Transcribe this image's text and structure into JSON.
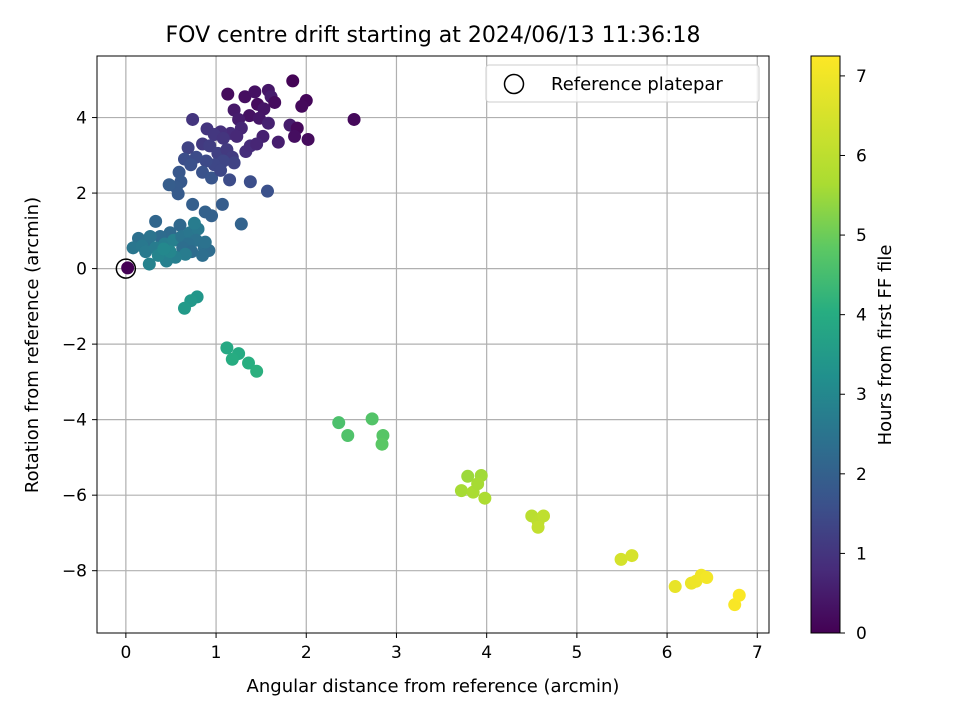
{
  "chart_data": {
    "type": "scatter",
    "title": "FOV centre drift starting at 2024/06/13 11:36:18",
    "xlabel": "Angular distance from reference (arcmin)",
    "ylabel": "Rotation from reference (arcmin)",
    "xlim": [
      -0.32,
      7.13
    ],
    "ylim": [
      -9.65,
      5.63
    ],
    "xticks": [
      0,
      1,
      2,
      3,
      4,
      5,
      6,
      7
    ],
    "yticks": [
      -8,
      -6,
      -4,
      -2,
      0,
      2,
      4
    ],
    "grid": true,
    "legend": {
      "placement": "top-right",
      "entries": [
        "Reference platepar"
      ]
    },
    "colorbar": {
      "label": "Hours from first FF file",
      "range": [
        0,
        7.25
      ],
      "ticks": [
        0,
        1,
        2,
        3,
        4,
        5,
        6,
        7
      ],
      "colormap": "viridis"
    },
    "reference": {
      "x": 0,
      "y": 0,
      "name": "Reference platepar"
    },
    "points": [
      [
        1.85,
        4.97,
        0.05
      ],
      [
        1.13,
        4.62,
        0.2
      ],
      [
        1.32,
        4.55,
        0.25
      ],
      [
        1.43,
        4.68,
        0.3
      ],
      [
        1.58,
        4.72,
        0.4
      ],
      [
        1.61,
        4.55,
        0.5
      ],
      [
        2.0,
        4.45,
        0.1
      ],
      [
        1.95,
        4.3,
        0.15
      ],
      [
        1.46,
        4.35,
        0.2
      ],
      [
        1.65,
        4.4,
        0.2
      ],
      [
        1.53,
        4.23,
        0.35
      ],
      [
        1.37,
        4.05,
        0.3
      ],
      [
        1.2,
        4.2,
        0.45
      ],
      [
        1.25,
        3.95,
        0.5
      ],
      [
        1.48,
        3.98,
        0.4
      ],
      [
        1.58,
        3.85,
        0.6
      ],
      [
        1.82,
        3.8,
        0.5
      ],
      [
        1.9,
        3.72,
        0.15
      ],
      [
        2.53,
        3.95,
        0.15
      ],
      [
        1.87,
        3.5,
        0.25
      ],
      [
        2.02,
        3.42,
        0.2
      ],
      [
        1.69,
        3.35,
        0.55
      ],
      [
        1.52,
        3.5,
        0.6
      ],
      [
        1.28,
        3.72,
        0.7
      ],
      [
        1.16,
        3.58,
        0.8
      ],
      [
        1.05,
        3.62,
        0.9
      ],
      [
        0.9,
        3.7,
        1.0
      ],
      [
        0.98,
        3.55,
        1.05
      ],
      [
        1.08,
        3.45,
        1.0
      ],
      [
        1.23,
        3.5,
        0.75
      ],
      [
        1.33,
        3.1,
        0.85
      ],
      [
        1.38,
        3.25,
        0.8
      ],
      [
        1.45,
        3.3,
        0.7
      ],
      [
        0.74,
        3.95,
        1.0
      ],
      [
        0.85,
        3.3,
        1.1
      ],
      [
        0.93,
        3.25,
        1.2
      ],
      [
        1.02,
        3.05,
        1.25
      ],
      [
        1.12,
        3.15,
        1.1
      ],
      [
        1.18,
        2.95,
        1.15
      ],
      [
        1.2,
        2.8,
        1.3
      ],
      [
        1.08,
        2.85,
        1.35
      ],
      [
        0.98,
        2.75,
        1.4
      ],
      [
        0.89,
        2.85,
        1.45
      ],
      [
        0.78,
        2.95,
        1.5
      ],
      [
        0.69,
        3.2,
        1.3
      ],
      [
        0.65,
        2.9,
        1.55
      ],
      [
        0.72,
        2.75,
        1.6
      ],
      [
        0.85,
        2.55,
        1.65
      ],
      [
        0.95,
        2.4,
        1.7
      ],
      [
        1.05,
        2.6,
        1.4
      ],
      [
        1.15,
        2.35,
        1.5
      ],
      [
        1.38,
        2.3,
        1.55
      ],
      [
        1.57,
        2.05,
        1.6
      ],
      [
        0.59,
        2.55,
        1.75
      ],
      [
        0.61,
        2.3,
        1.8
      ],
      [
        0.56,
        2.15,
        1.85
      ],
      [
        0.48,
        2.22,
        1.9
      ],
      [
        0.58,
        1.98,
        1.85
      ],
      [
        0.74,
        1.7,
        1.95
      ],
      [
        0.88,
        1.5,
        2.0
      ],
      [
        0.95,
        1.4,
        2.0
      ],
      [
        1.07,
        1.7,
        1.9
      ],
      [
        1.28,
        1.18,
        2.05
      ],
      [
        0.33,
        1.25,
        2.15
      ],
      [
        0.6,
        1.15,
        2.2
      ],
      [
        0.49,
        0.95,
        2.25
      ],
      [
        0.38,
        0.85,
        2.3
      ],
      [
        0.14,
        0.8,
        2.4
      ],
      [
        0.24,
        0.75,
        2.45
      ],
      [
        0.27,
        0.85,
        2.5
      ],
      [
        0.08,
        0.55,
        2.55
      ],
      [
        0.18,
        0.6,
        2.6
      ],
      [
        0.22,
        0.45,
        2.65
      ],
      [
        0.33,
        0.55,
        2.7
      ],
      [
        0.43,
        0.65,
        2.75
      ],
      [
        0.53,
        0.75,
        2.8
      ],
      [
        0.62,
        0.85,
        2.5
      ],
      [
        0.71,
        0.95,
        2.55
      ],
      [
        0.8,
        1.05,
        2.6
      ],
      [
        0.78,
        0.75,
        2.45
      ],
      [
        0.69,
        0.65,
        2.4
      ],
      [
        0.63,
        0.55,
        2.35
      ],
      [
        0.73,
        0.45,
        2.3
      ],
      [
        0.87,
        0.55,
        2.4
      ],
      [
        0.92,
        0.48,
        2.3
      ],
      [
        0.85,
        0.35,
        2.35
      ],
      [
        0.66,
        0.38,
        2.7
      ],
      [
        0.55,
        0.3,
        2.75
      ],
      [
        0.45,
        0.2,
        2.8
      ],
      [
        0.26,
        0.12,
        2.85
      ],
      [
        0.36,
        0.35,
        2.9
      ],
      [
        0.49,
        0.45,
        2.95
      ],
      [
        0.42,
        0.52,
        3.0
      ],
      [
        0.76,
        1.2,
        2.7
      ],
      [
        0.88,
        0.7,
        2.45
      ],
      [
        0.02,
        0.02,
        0.0
      ],
      [
        0.79,
        -0.75,
        3.4
      ],
      [
        0.72,
        -0.85,
        3.45
      ],
      [
        0.65,
        -1.05,
        3.5
      ],
      [
        1.12,
        -2.1,
        3.9
      ],
      [
        1.25,
        -2.25,
        3.95
      ],
      [
        1.18,
        -2.4,
        4.0
      ],
      [
        1.36,
        -2.5,
        4.05
      ],
      [
        1.45,
        -2.72,
        4.1
      ],
      [
        2.36,
        -4.08,
        4.6
      ],
      [
        2.46,
        -4.42,
        4.65
      ],
      [
        2.73,
        -3.98,
        4.7
      ],
      [
        2.85,
        -4.42,
        4.75
      ],
      [
        2.84,
        -4.65,
        4.8
      ],
      [
        3.79,
        -5.5,
        5.5
      ],
      [
        3.94,
        -5.48,
        5.55
      ],
      [
        3.72,
        -5.88,
        5.6
      ],
      [
        3.85,
        -5.92,
        5.65
      ],
      [
        3.98,
        -6.08,
        5.7
      ],
      [
        3.9,
        -5.7,
        5.6
      ],
      [
        4.5,
        -6.55,
        5.95
      ],
      [
        4.57,
        -6.7,
        6.0
      ],
      [
        4.63,
        -6.55,
        6.05
      ],
      [
        4.57,
        -6.85,
        6.1
      ],
      [
        5.49,
        -7.7,
        6.45
      ],
      [
        5.61,
        -7.6,
        6.5
      ],
      [
        6.09,
        -8.42,
        6.85
      ],
      [
        6.27,
        -8.33,
        6.9
      ],
      [
        6.32,
        -8.28,
        6.95
      ],
      [
        6.38,
        -8.12,
        7.0
      ],
      [
        6.44,
        -8.18,
        7.05
      ],
      [
        6.75,
        -8.9,
        7.15
      ],
      [
        6.8,
        -8.65,
        7.2
      ]
    ]
  }
}
